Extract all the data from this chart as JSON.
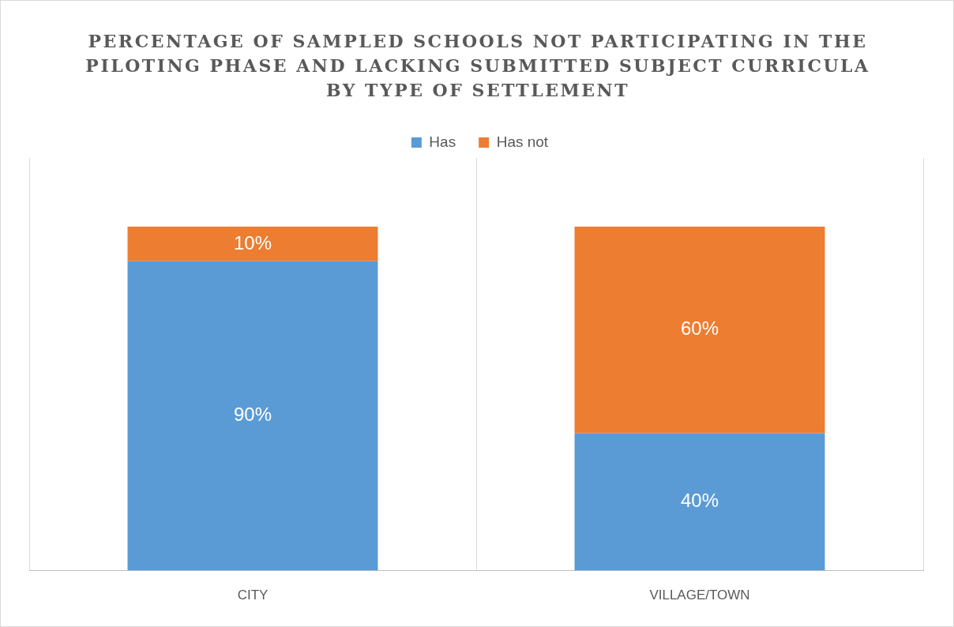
{
  "chart_data": {
    "type": "bar",
    "title": "PERCENTAGE OF SAMPLED SCHOOLS NOT PARTICIPATING IN THE PILOTING PHASE AND LACKING SUBMITTED SUBJECT CURRICULA BY TYPE OF SETTLEMENT",
    "categories": [
      "CITY",
      "VILLAGE/TOWN"
    ],
    "series": [
      {
        "name": "Has",
        "color": "#5b9bd5",
        "values": [
          90,
          40
        ],
        "value_labels": [
          "90%",
          "40%"
        ]
      },
      {
        "name": "Has not",
        "color": "#ed7d31",
        "values": [
          10,
          60
        ],
        "value_labels": [
          "10%",
          "60%"
        ]
      }
    ],
    "stacked": true,
    "legend": "top",
    "grid": "x",
    "tick_labels": "x"
  }
}
